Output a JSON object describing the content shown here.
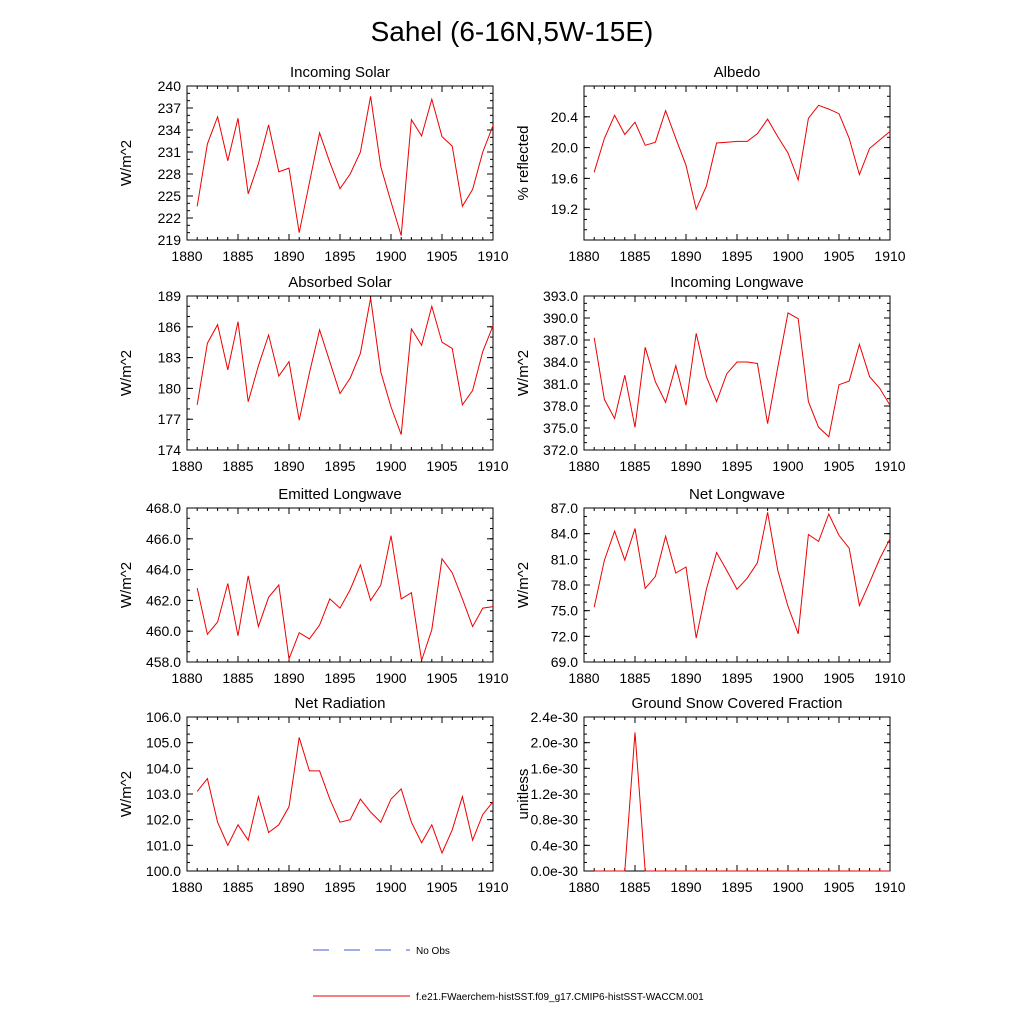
{
  "figure": {
    "title": "Sahel (6-16N,5W-15E)",
    "line_color": "#ee0000",
    "axis_color": "#000000"
  },
  "legend": {
    "items": [
      {
        "label": "No Obs",
        "color": "#4a5bd6",
        "style": "dashed"
      },
      {
        "label": "f.e21.FWaerchem-histSST.f09_g17.CMIP6-histSST-WACCM.001",
        "color": "#ee0000",
        "style": "solid"
      }
    ]
  },
  "chart_data": [
    {
      "type": "line",
      "title": "Incoming Solar",
      "ylabel": "W/m^2",
      "xlim": [
        1880,
        1910
      ],
      "ylim": [
        219,
        240
      ],
      "xticks": [
        1880,
        1885,
        1890,
        1895,
        1900,
        1905,
        1910
      ],
      "yticks": [
        "240",
        "237",
        "234",
        "231",
        "228",
        "225",
        "222",
        "219"
      ],
      "ytick_values": [
        240,
        237,
        234,
        231,
        228,
        225,
        222,
        219
      ],
      "series": [
        {
          "x": [
            1881,
            1882,
            1883,
            1884,
            1885,
            1886,
            1887,
            1888,
            1889,
            1890,
            1891,
            1892,
            1893,
            1894,
            1895,
            1896,
            1897,
            1898,
            1899,
            1900,
            1901,
            1902,
            1903,
            1904,
            1905,
            1906,
            1907,
            1908,
            1909,
            1910
          ],
          "values": [
            223.6,
            232.1,
            235.8,
            229.8,
            235.6,
            225.3,
            229.4,
            234.7,
            228.3,
            228.8,
            220.0,
            226.8,
            233.6,
            229.6,
            226.0,
            228.0,
            231.0,
            238.6,
            229.0,
            224.2,
            219.6,
            235.4,
            233.2,
            238.2,
            233.1,
            231.8,
            223.6,
            225.9,
            231.0,
            234.6
          ]
        }
      ]
    },
    {
      "type": "line",
      "title": "Albedo",
      "ylabel": "% reflected",
      "xlim": [
        1880,
        1910
      ],
      "ylim": [
        18.8,
        20.8
      ],
      "xticks": [
        1880,
        1885,
        1890,
        1895,
        1900,
        1905,
        1910
      ],
      "yticks": [
        "20.4",
        "20.0",
        "19.6",
        "19.2"
      ],
      "ytick_values": [
        20.4,
        20.0,
        19.6,
        19.2
      ],
      "series": [
        {
          "x": [
            1881,
            1882,
            1883,
            1884,
            1885,
            1886,
            1887,
            1888,
            1889,
            1890,
            1891,
            1892,
            1893,
            1894,
            1895,
            1896,
            1897,
            1898,
            1899,
            1900,
            1901,
            1902,
            1903,
            1904,
            1905,
            1906,
            1907,
            1908,
            1909,
            1910
          ],
          "values": [
            19.68,
            20.12,
            20.42,
            20.17,
            20.33,
            20.03,
            20.07,
            20.48,
            20.12,
            19.77,
            19.2,
            19.5,
            20.06,
            20.07,
            20.08,
            20.08,
            20.18,
            20.37,
            20.14,
            19.93,
            19.58,
            20.38,
            20.55,
            20.5,
            20.44,
            20.12,
            19.65,
            19.99,
            20.1,
            20.21
          ]
        }
      ]
    },
    {
      "type": "line",
      "title": "Absorbed Solar",
      "ylabel": "W/m^2",
      "xlim": [
        1880,
        1910
      ],
      "ylim": [
        174,
        189
      ],
      "xticks": [
        1880,
        1885,
        1890,
        1895,
        1900,
        1905,
        1910
      ],
      "yticks": [
        "189",
        "186",
        "183",
        "180",
        "177",
        "174"
      ],
      "ytick_values": [
        189,
        186,
        183,
        180,
        177,
        174
      ],
      "series": [
        {
          "x": [
            1881,
            1882,
            1883,
            1884,
            1885,
            1886,
            1887,
            1888,
            1889,
            1890,
            1891,
            1892,
            1893,
            1894,
            1895,
            1896,
            1897,
            1898,
            1899,
            1900,
            1901,
            1902,
            1903,
            1904,
            1905,
            1906,
            1907,
            1908,
            1909,
            1910
          ],
          "values": [
            178.4,
            184.4,
            186.2,
            181.8,
            186.5,
            178.7,
            182.2,
            185.2,
            181.2,
            182.6,
            176.9,
            181.5,
            185.7,
            182.6,
            179.5,
            181.0,
            183.4,
            188.8,
            181.6,
            178.2,
            175.5,
            185.8,
            184.2,
            188.0,
            184.5,
            183.9,
            178.4,
            179.8,
            183.6,
            186.1
          ]
        }
      ]
    },
    {
      "type": "line",
      "title": "Incoming Longwave",
      "ylabel": "W/m^2",
      "xlim": [
        1880,
        1910
      ],
      "ylim": [
        372,
        393
      ],
      "xticks": [
        1880,
        1885,
        1890,
        1895,
        1900,
        1905,
        1910
      ],
      "yticks": [
        "393.0",
        "390.0",
        "387.0",
        "384.0",
        "381.0",
        "378.0",
        "375.0",
        "372.0"
      ],
      "ytick_values": [
        393,
        390,
        387,
        384,
        381,
        378,
        375,
        372
      ],
      "series": [
        {
          "x": [
            1881,
            1882,
            1883,
            1884,
            1885,
            1886,
            1887,
            1888,
            1889,
            1890,
            1891,
            1892,
            1893,
            1894,
            1895,
            1896,
            1897,
            1898,
            1899,
            1900,
            1901,
            1902,
            1903,
            1904,
            1905,
            1906,
            1907,
            1908,
            1909,
            1910
          ],
          "values": [
            387.3,
            378.9,
            376.3,
            382.2,
            375.1,
            386.0,
            381.3,
            378.5,
            383.5,
            378.1,
            387.9,
            382.0,
            378.6,
            382.4,
            384.0,
            384.0,
            383.8,
            375.6,
            383.3,
            390.7,
            389.9,
            378.6,
            375.1,
            373.8,
            380.9,
            381.4,
            386.4,
            382.0,
            380.4,
            378.1
          ]
        }
      ]
    },
    {
      "type": "line",
      "title": "Emitted Longwave",
      "ylabel": "W/m^2",
      "xlim": [
        1880,
        1910
      ],
      "ylim": [
        458,
        468
      ],
      "xticks": [
        1880,
        1885,
        1890,
        1895,
        1900,
        1905,
        1910
      ],
      "yticks": [
        "468.0",
        "466.0",
        "464.0",
        "462.0",
        "460.0",
        "458.0"
      ],
      "ytick_values": [
        468,
        466,
        464,
        462,
        460,
        458
      ],
      "series": [
        {
          "x": [
            1881,
            1882,
            1883,
            1884,
            1885,
            1886,
            1887,
            1888,
            1889,
            1890,
            1891,
            1892,
            1893,
            1894,
            1895,
            1896,
            1897,
            1898,
            1899,
            1900,
            1901,
            1902,
            1903,
            1904,
            1905,
            1906,
            1907,
            1908,
            1909,
            1910
          ],
          "values": [
            462.8,
            459.8,
            460.6,
            463.1,
            459.7,
            463.6,
            460.3,
            462.2,
            463.0,
            458.2,
            459.9,
            459.5,
            460.4,
            462.1,
            461.5,
            462.7,
            464.3,
            462.0,
            463.0,
            466.2,
            462.1,
            462.5,
            458.1,
            460.1,
            464.7,
            463.8,
            462.1,
            460.3,
            461.5,
            461.6
          ]
        }
      ]
    },
    {
      "type": "line",
      "title": "Net Longwave",
      "ylabel": "W/m^2",
      "xlim": [
        1880,
        1910
      ],
      "ylim": [
        69,
        87
      ],
      "xticks": [
        1880,
        1885,
        1890,
        1895,
        1900,
        1905,
        1910
      ],
      "yticks": [
        "87.0",
        "84.0",
        "81.0",
        "78.0",
        "75.0",
        "72.0",
        "69.0"
      ],
      "ytick_values": [
        87,
        84,
        81,
        78,
        75,
        72,
        69
      ],
      "series": [
        {
          "x": [
            1881,
            1882,
            1883,
            1884,
            1885,
            1886,
            1887,
            1888,
            1889,
            1890,
            1891,
            1892,
            1893,
            1894,
            1895,
            1896,
            1897,
            1898,
            1899,
            1900,
            1901,
            1902,
            1903,
            1904,
            1905,
            1906,
            1907,
            1908,
            1909,
            1910
          ],
          "values": [
            75.4,
            80.9,
            84.3,
            80.9,
            84.6,
            77.6,
            79.0,
            83.7,
            79.4,
            80.1,
            71.8,
            77.5,
            81.8,
            79.7,
            77.5,
            78.8,
            80.6,
            86.5,
            79.7,
            75.5,
            72.3,
            83.9,
            83.1,
            86.3,
            83.8,
            82.3,
            75.6,
            78.3,
            81.1,
            83.4
          ]
        }
      ]
    },
    {
      "type": "line",
      "title": "Net Radiation",
      "ylabel": "W/m^2",
      "xlim": [
        1880,
        1910
      ],
      "ylim": [
        100,
        106
      ],
      "xticks": [
        1880,
        1885,
        1890,
        1895,
        1900,
        1905,
        1910
      ],
      "yticks": [
        "106.0",
        "105.0",
        "104.0",
        "103.0",
        "102.0",
        "101.0",
        "100.0"
      ],
      "ytick_values": [
        106,
        105,
        104,
        103,
        102,
        101,
        100
      ],
      "series": [
        {
          "x": [
            1881,
            1882,
            1883,
            1884,
            1885,
            1886,
            1887,
            1888,
            1889,
            1890,
            1891,
            1892,
            1893,
            1894,
            1895,
            1896,
            1897,
            1898,
            1899,
            1900,
            1901,
            1902,
            1903,
            1904,
            1905,
            1906,
            1907,
            1908,
            1909,
            1910
          ],
          "values": [
            103.1,
            103.6,
            101.9,
            101.0,
            101.8,
            101.2,
            102.9,
            101.5,
            101.8,
            102.5,
            105.2,
            103.9,
            103.9,
            102.8,
            101.9,
            102.0,
            102.8,
            102.3,
            101.9,
            102.8,
            103.2,
            101.9,
            101.1,
            101.8,
            100.7,
            101.6,
            102.9,
            101.2,
            102.2,
            102.7
          ]
        }
      ]
    },
    {
      "type": "line",
      "title": "Ground Snow Covered Fraction",
      "ylabel": "unitless",
      "xlim": [
        1880,
        1910
      ],
      "ylim": [
        0,
        2.4e-30
      ],
      "xticks": [
        1880,
        1885,
        1890,
        1895,
        1900,
        1905,
        1910
      ],
      "yticks": [
        "2.4e-30",
        "2.0e-30",
        "1.6e-30",
        "1.2e-30",
        "0.8e-30",
        "0.4e-30",
        "0.0e-30"
      ],
      "ytick_values": [
        2.4e-30,
        2e-30,
        1.6e-30,
        1.2e-30,
        8e-31,
        4e-31,
        0
      ],
      "series": [
        {
          "x": [
            1881,
            1882,
            1883,
            1884,
            1885,
            1886,
            1887,
            1888,
            1889,
            1890,
            1891,
            1892,
            1893,
            1894,
            1895,
            1896,
            1897,
            1898,
            1899,
            1900,
            1901,
            1902,
            1903,
            1904,
            1905,
            1906,
            1907,
            1908,
            1909,
            1910
          ],
          "values": [
            0,
            0,
            0,
            0,
            2.16e-30,
            0,
            0,
            0,
            0,
            0,
            0,
            0,
            0,
            0,
            0,
            0,
            0,
            0,
            0,
            0,
            0,
            0,
            0,
            0,
            0,
            0,
            0,
            0,
            0,
            0
          ]
        }
      ]
    }
  ]
}
